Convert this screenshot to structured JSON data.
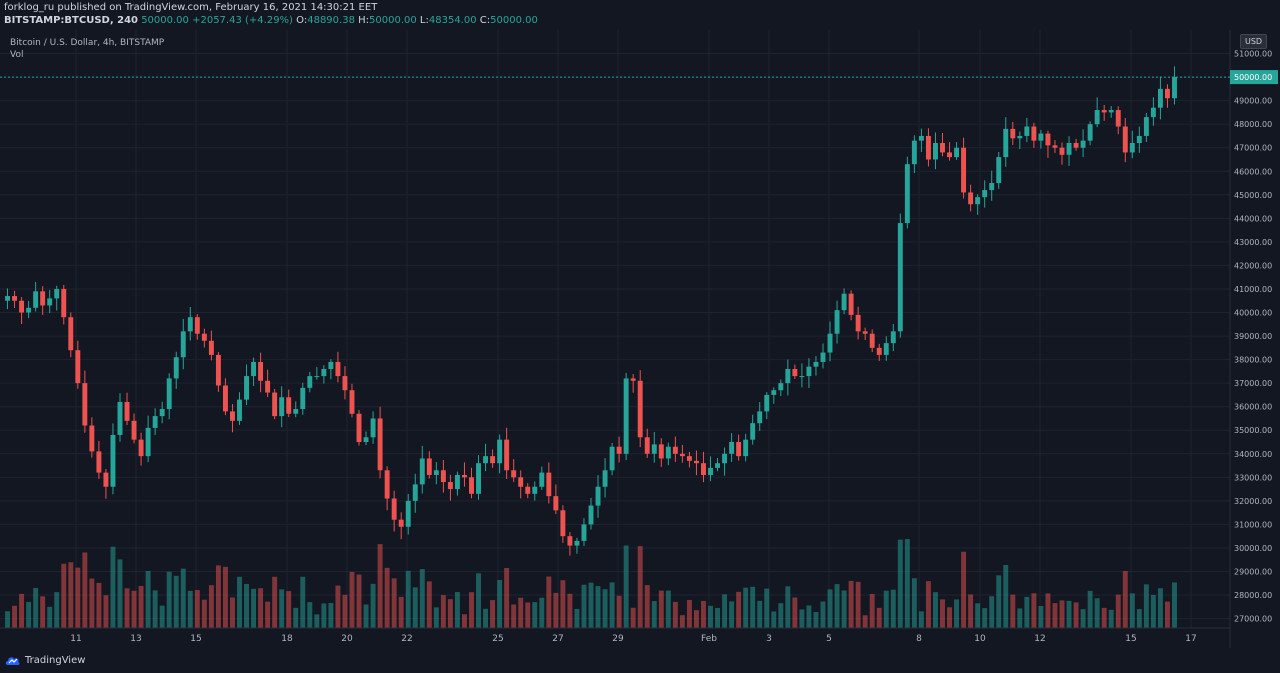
{
  "header": {
    "publisher_line": "forklog_ru published on TradingView.com, February 16, 2021 14:30:21 EET",
    "symbol": "BITSTAMP:BTCUSD, 240",
    "last": "50000.00",
    "change": "+2057.43 (+4.29%)",
    "o_label": "O:",
    "o_value": "48890.38",
    "h_label": "H:",
    "h_value": "50000.00",
    "l_label": "L:",
    "l_value": "48354.00",
    "c_label": "C:",
    "c_value": "50000.00"
  },
  "legend": {
    "title": "Bitcoin / U.S. Dollar, 4h, BITSTAMP",
    "indicator": "Vol"
  },
  "currency_button": "USD",
  "brand": "TradingView",
  "colors": {
    "up": "#26a69a",
    "down": "#ef5350",
    "background": "#131722",
    "grid": "#1f2330",
    "axis_text": "#b2b5be"
  },
  "chart_data": {
    "type": "candlestick",
    "title": "Bitcoin / U.S. Dollar, 4h, BITSTAMP",
    "ylim": [
      26600,
      52000
    ],
    "y_ticks": [
      27000,
      28000,
      29000,
      30000,
      31000,
      32000,
      33000,
      34000,
      35000,
      36000,
      37000,
      38000,
      39000,
      40000,
      41000,
      42000,
      43000,
      44000,
      45000,
      46000,
      47000,
      48000,
      49000,
      50000,
      51000
    ],
    "last_price": 50000.0,
    "x_ticks": [
      "11",
      "13",
      "15",
      "18",
      "20",
      "22",
      "25",
      "27",
      "29",
      "Feb",
      "3",
      "5",
      "8",
      "10",
      "12",
      "15",
      "17"
    ],
    "closes": [
      40700,
      40500,
      40000,
      40200,
      40900,
      40300,
      40600,
      41000,
      39800,
      38400,
      37000,
      35200,
      34100,
      33200,
      32600,
      34800,
      36200,
      35400,
      34600,
      33900,
      35100,
      35600,
      35900,
      37200,
      38100,
      39200,
      39800,
      39100,
      38800,
      38200,
      36900,
      35800,
      35400,
      36300,
      37300,
      37900,
      37100,
      36600,
      35600,
      36400,
      35700,
      35900,
      36800,
      37300,
      37300,
      37600,
      37900,
      37300,
      36700,
      35700,
      34500,
      34700,
      35500,
      33300,
      32100,
      31200,
      30900,
      32000,
      32700,
      33800,
      33100,
      33300,
      32800,
      32500,
      33100,
      33000,
      32300,
      33600,
      33900,
      33600,
      34600,
      33300,
      33000,
      32600,
      32300,
      32600,
      33200,
      32200,
      31600,
      30500,
      30100,
      30300,
      31000,
      31800,
      32600,
      33300,
      34300,
      34000,
      37200,
      37100,
      34700,
      34000,
      34400,
      33800,
      34300,
      34000,
      33900,
      33700,
      33600,
      33100,
      33400,
      33600,
      34000,
      34500,
      33900,
      34600,
      35300,
      35800,
      36500,
      36700,
      37000,
      37600,
      37300,
      37300,
      37700,
      37900,
      38300,
      39100,
      40100,
      40800,
      39900,
      39200,
      39100,
      38500,
      38200,
      38700,
      39200,
      43800,
      46300,
      47300,
      47500,
      46500,
      47200,
      46800,
      46600,
      47000,
      45100,
      44600,
      44900,
      45200,
      45500,
      46600,
      47800,
      47400,
      47500,
      47900,
      47300,
      47600,
      47100,
      47000,
      46700,
      47200,
      47000,
      47300,
      48000,
      48600,
      48500,
      48600,
      47900,
      46800,
      47200,
      47500,
      48300,
      48700,
      49500,
      49100,
      50000
    ]
  }
}
